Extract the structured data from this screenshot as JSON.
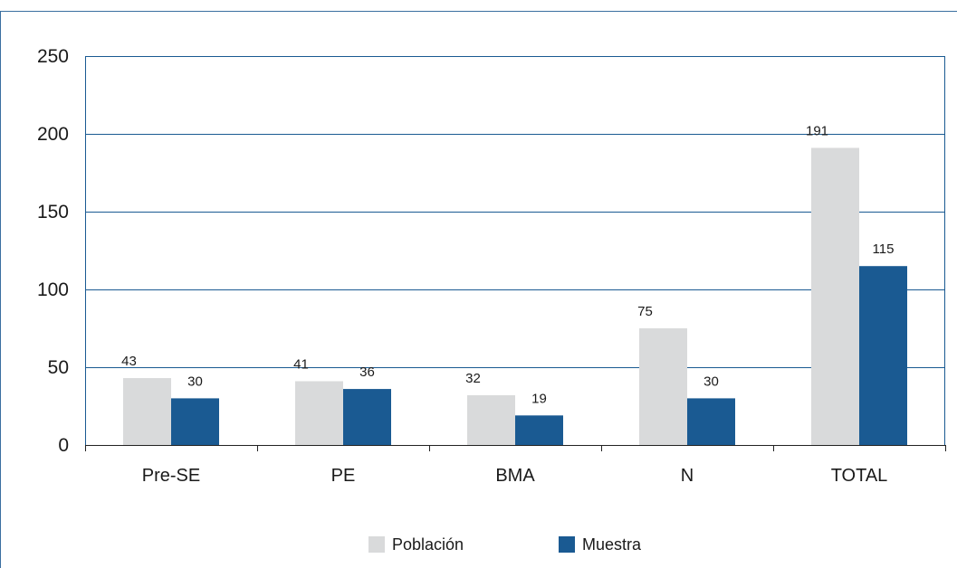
{
  "chart_data": {
    "type": "bar",
    "categories": [
      "Pre-SE",
      "PE",
      "BMA",
      "N",
      "TOTAL"
    ],
    "series": [
      {
        "name": "Población",
        "values": [
          43,
          41,
          32,
          75,
          191
        ],
        "color": "#d9dadb"
      },
      {
        "name": "Muestra",
        "values": [
          30,
          36,
          19,
          30,
          115
        ],
        "color": "#1a5a92"
      }
    ],
    "ylim": [
      0,
      250
    ],
    "yticks": [
      0,
      50,
      100,
      150,
      200,
      250
    ],
    "grid": true,
    "legend": "bottom",
    "colors": {
      "grid": "#1a5a92",
      "frame": "#3a6fa0"
    }
  }
}
